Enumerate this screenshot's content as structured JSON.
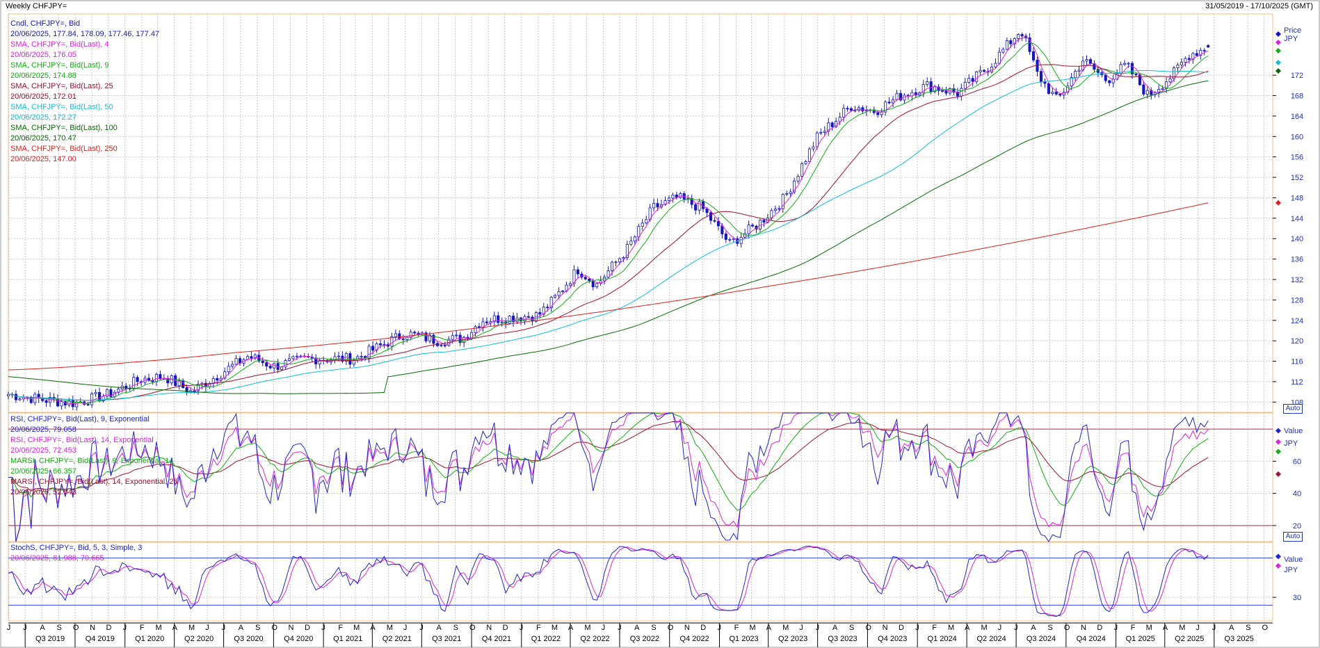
{
  "header": {
    "title": "Weekly CHFJPY=",
    "date_range": "31/05/2019 - 17/10/2025 (GMT)"
  },
  "colors": {
    "candle": "#1515c8",
    "sma4": "#e020e0",
    "sma9": "#10b010",
    "sma25": "#a01030",
    "sma50": "#10c0d0",
    "sma100": "#086808",
    "sma250": "#e02020",
    "rsi9": "#2020e0",
    "rsi14": "#e020e0",
    "marsi9": "#10b010",
    "marsi14": "#a01030",
    "grid": "#c8c8c8",
    "frame": "#f0c080",
    "axis_text": "#2030c0"
  },
  "price_panel": {
    "legend": [
      {
        "label": "Cndl, CHFJPY=, Bid",
        "value": "20/06/2025, 177.84, 178.09, 177.46, 177.47",
        "color": "#1515c8"
      },
      {
        "label": "SMA, CHFJPY=, Bid(Last),  4",
        "value": "20/06/2025, 176.05",
        "color": "#e020e0"
      },
      {
        "label": "SMA, CHFJPY=, Bid(Last),  9",
        "value": "20/06/2025, 174.88",
        "color": "#10b010"
      },
      {
        "label": "SMA, CHFJPY=, Bid(Last),  25",
        "value": "20/06/2025, 172.01",
        "color": "#a01030"
      },
      {
        "label": "SMA, CHFJPY=, Bid(Last),  50",
        "value": "20/06/2025, 172.27",
        "color": "#10c0d0"
      },
      {
        "label": "SMA, CHFJPY=, Bid(Last),  100",
        "value": "20/06/2025, 170.47",
        "color": "#086808"
      },
      {
        "label": "SMA, CHFJPY=, Bid(Last),  250",
        "value": "20/06/2025, 147.00",
        "color": "#e02020"
      }
    ],
    "axis_title": "Price",
    "axis_unit": "JPY",
    "auto_label": "Auto"
  },
  "rsi_panel": {
    "legend": [
      {
        "label": "RSI, CHFJPY=, Bid(Last),  9, Exponential",
        "value": "20/06/2025, 79.058",
        "color": "#2020e0"
      },
      {
        "label": "RSI, CHFJPY=, Bid(Last),  14, Exponential",
        "value": "20/06/2025, 72.453",
        "color": "#e020e0"
      },
      {
        "label": "MARSI, CHFJPY=, Bid(Last),  9, Exponential, 14",
        "value": "20/06/2025, 66.357",
        "color": "#10b010"
      },
      {
        "label": "MARSI, CHFJPY=, Bid(Last),  14, Exponential, 25",
        "value": "20/06/2025, 52.043",
        "color": "#a01030"
      }
    ],
    "axis_title": "Value",
    "axis_unit": "JPY",
    "auto_label": "Auto"
  },
  "stoch_panel": {
    "legend": [
      {
        "label": "StochS, CHFJPY=, Bid,  5, 3, Simple, 3",
        "color": "#2020e0"
      },
      {
        "label": "20/06/2025, 81.988, 70.665",
        "color": "#e020e0"
      }
    ],
    "axis_title": "Value",
    "axis_unit": "JPY"
  },
  "chart_data": [
    {
      "type": "candlestick",
      "title": "Weekly CHFJPY=",
      "ylabel": "Price",
      "ylim": [
        106,
        184
      ],
      "yticks": [
        108,
        112,
        116,
        120,
        124,
        128,
        132,
        136,
        140,
        144,
        148,
        152,
        156,
        160,
        164,
        168,
        172
      ],
      "x_start": "2019-05-31",
      "x_end": "2025-10-17",
      "anchors": [
        [
          "2019-06-01",
          109.5
        ],
        [
          "2019-08-01",
          108.5
        ],
        [
          "2019-10-01",
          107.8
        ],
        [
          "2019-12-01",
          109.5
        ],
        [
          "2020-02-01",
          112.5
        ],
        [
          "2020-03-15",
          113.0
        ],
        [
          "2020-05-01",
          110.0
        ],
        [
          "2020-06-01",
          112.0
        ],
        [
          "2020-08-15",
          117.0
        ],
        [
          "2020-10-01",
          115.0
        ],
        [
          "2020-12-01",
          116.5
        ],
        [
          "2021-03-01",
          116.5
        ],
        [
          "2021-06-01",
          121.5
        ],
        [
          "2021-08-01",
          120.0
        ],
        [
          "2021-09-15",
          120.5
        ],
        [
          "2021-10-20",
          124.0
        ],
        [
          "2021-12-01",
          124.5
        ],
        [
          "2022-02-01",
          125.0
        ],
        [
          "2022-03-01",
          128.0
        ],
        [
          "2022-04-15",
          134.0
        ],
        [
          "2022-05-20",
          131.0
        ],
        [
          "2022-07-15",
          138.0
        ],
        [
          "2022-09-01",
          146.0
        ],
        [
          "2022-10-15",
          148.0
        ],
        [
          "2022-11-30",
          146.0
        ],
        [
          "2023-01-20",
          139.0
        ],
        [
          "2023-03-15",
          143.0
        ],
        [
          "2023-05-01",
          148.0
        ],
        [
          "2023-07-01",
          160.0
        ],
        [
          "2023-09-01",
          166.0
        ],
        [
          "2023-10-15",
          165.0
        ],
        [
          "2023-12-01",
          168.0
        ],
        [
          "2024-01-20",
          170.0
        ],
        [
          "2024-03-15",
          168.5
        ],
        [
          "2024-05-15",
          174.0
        ],
        [
          "2024-07-10",
          181.0
        ],
        [
          "2024-08-10",
          172.0
        ],
        [
          "2024-09-15",
          167.0
        ],
        [
          "2024-11-01",
          175.0
        ],
        [
          "2024-12-15",
          171.0
        ],
        [
          "2025-01-20",
          174.0
        ],
        [
          "2025-03-01",
          168.0
        ],
        [
          "2025-04-15",
          172.0
        ],
        [
          "2025-05-15",
          176.0
        ],
        [
          "2025-06-20",
          177.5
        ]
      ],
      "series": [
        {
          "name": "SMA 4",
          "last": 176.05
        },
        {
          "name": "SMA 9",
          "last": 174.88
        },
        {
          "name": "SMA 25",
          "last": 172.01
        },
        {
          "name": "SMA 50",
          "last": 172.27
        },
        {
          "name": "SMA 100",
          "last": 170.47
        },
        {
          "name": "SMA 250",
          "last": 147.0
        }
      ],
      "last_candle": {
        "date": "20/06/2025",
        "open": 177.84,
        "high": 178.09,
        "low": 177.46,
        "close": 177.47
      }
    },
    {
      "type": "line",
      "ylabel": "Value",
      "ylim": [
        10,
        90
      ],
      "yticks": [
        20,
        40,
        60
      ],
      "reference_lines": [
        20,
        80
      ],
      "series": [
        {
          "name": "RSI 9",
          "last": 79.058
        },
        {
          "name": "RSI 14",
          "last": 72.453
        },
        {
          "name": "MARSI 9,14",
          "last": 66.357
        },
        {
          "name": "MARSI 14,25",
          "last": 52.043
        }
      ]
    },
    {
      "type": "line",
      "ylabel": "Value",
      "ylim": [
        0,
        100
      ],
      "yticks": [
        30
      ],
      "reference_lines": [
        20,
        80
      ],
      "series": [
        {
          "name": "StochS %K",
          "last": 81.988
        },
        {
          "name": "StochS %D",
          "last": 70.665
        }
      ]
    }
  ],
  "x_axis": {
    "months": [
      "J",
      "J",
      "A",
      "S",
      "O",
      "N",
      "D",
      "J",
      "F",
      "M",
      "A",
      "M",
      "J",
      "J",
      "A",
      "S",
      "O",
      "N",
      "D",
      "J",
      "F",
      "M",
      "A",
      "M",
      "J",
      "J",
      "A",
      "S",
      "O",
      "N",
      "D",
      "J",
      "F",
      "M",
      "A",
      "M",
      "J",
      "J",
      "A",
      "S",
      "O",
      "N",
      "D",
      "J",
      "F",
      "M",
      "A",
      "M",
      "J",
      "J",
      "A",
      "S",
      "O",
      "N",
      "D",
      "J",
      "F",
      "M",
      "A",
      "M",
      "J",
      "J",
      "A",
      "S",
      "O",
      "N",
      "D",
      "J",
      "F",
      "M",
      "A",
      "M",
      "J",
      "J",
      "A",
      "S",
      "O"
    ],
    "quarters": [
      "Q3 2019",
      "Q4 2019",
      "Q1 2020",
      "Q2 2020",
      "Q3 2020",
      "Q4 2020",
      "Q1 2021",
      "Q2 2021",
      "Q3 2021",
      "Q4 2021",
      "Q1 2022",
      "Q2 2022",
      "Q3 2022",
      "Q4 2022",
      "Q1 2023",
      "Q2 2023",
      "Q3 2023",
      "Q4 2023",
      "Q1 2024",
      "Q2 2024",
      "Q3 2024",
      "Q4 2024",
      "Q1 2025",
      "Q2 2025",
      "Q3 2025"
    ]
  }
}
